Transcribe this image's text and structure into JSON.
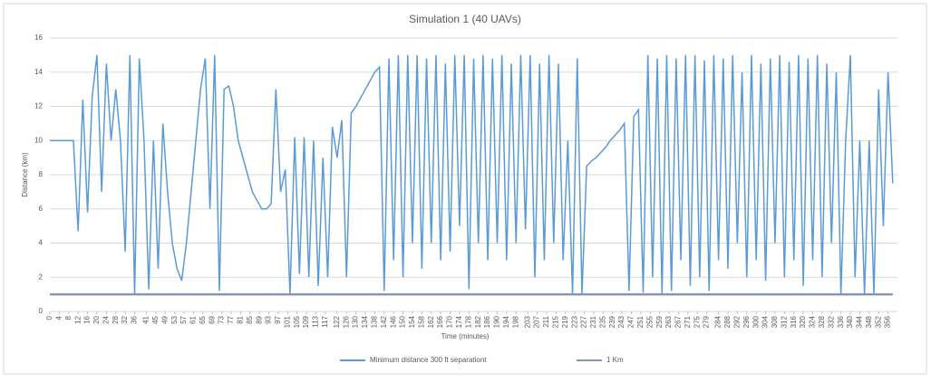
{
  "chart_data": {
    "type": "line",
    "title": "Simulation 1 (40 UAVs)",
    "x_label": "Time (minutes)",
    "y_label": "Distance (km)",
    "xlim": [
      0,
      360
    ],
    "ylim": [
      0,
      16
    ],
    "yticks": [
      0,
      2,
      4,
      6,
      8,
      10,
      12,
      14,
      16
    ],
    "xticks": [
      0,
      4,
      8,
      12,
      16,
      20,
      24,
      28,
      32,
      36,
      41,
      45,
      49,
      53,
      57,
      61,
      65,
      69,
      73,
      77,
      81,
      85,
      89,
      93,
      97,
      101,
      105,
      109,
      113,
      117,
      122,
      126,
      130,
      134,
      138,
      142,
      146,
      150,
      154,
      158,
      162,
      166,
      170,
      174,
      178,
      182,
      186,
      190,
      194,
      198,
      203,
      207,
      211,
      215,
      219,
      223,
      227,
      231,
      235,
      239,
      243,
      247,
      251,
      255,
      259,
      263,
      267,
      271,
      275,
      279,
      284,
      288,
      292,
      296,
      300,
      304,
      308,
      312,
      316,
      320,
      324,
      328,
      332,
      336,
      340,
      344,
      348,
      352,
      356
    ],
    "grid": true,
    "legend": "bottom",
    "series": [
      {
        "name": "Minimum distance 300 ft separationt",
        "color": "#5b9bd5",
        "x": [
          0,
          2,
          4,
          6,
          8,
          10,
          12,
          14,
          16,
          18,
          20,
          22,
          24,
          26,
          28,
          30,
          32,
          34,
          36,
          38,
          40,
          42,
          44,
          46,
          48,
          50,
          52,
          54,
          56,
          58,
          60,
          62,
          64,
          66,
          68,
          70,
          72,
          74,
          76,
          78,
          80,
          82,
          84,
          86,
          88,
          90,
          92,
          94,
          96,
          98,
          100,
          102,
          104,
          106,
          108,
          110,
          112,
          114,
          116,
          118,
          120,
          122,
          124,
          126,
          128,
          130,
          132,
          134,
          136,
          138,
          140,
          142,
          144,
          146,
          148,
          150,
          152,
          154,
          156,
          158,
          160,
          162,
          164,
          166,
          168,
          170,
          172,
          174,
          176,
          178,
          180,
          182,
          184,
          186,
          188,
          190,
          192,
          194,
          196,
          198,
          200,
          202,
          204,
          206,
          208,
          210,
          212,
          214,
          216,
          218,
          220,
          222,
          224,
          226,
          228,
          230,
          232,
          234,
          236,
          238,
          240,
          242,
          244,
          246,
          248,
          250,
          252,
          254,
          256,
          258,
          260,
          262,
          264,
          266,
          268,
          270,
          272,
          274,
          276,
          278,
          280,
          282,
          284,
          286,
          288,
          290,
          292,
          294,
          296,
          298,
          300,
          302,
          304,
          306,
          308,
          310,
          312,
          314,
          316,
          318,
          320,
          322,
          324,
          326,
          328,
          330,
          332,
          334,
          336,
          338,
          340,
          342,
          344,
          346,
          348,
          350,
          352,
          354,
          356,
          358
        ],
        "values": [
          10,
          10,
          10,
          10,
          10,
          10,
          4.7,
          12.4,
          5.8,
          12.6,
          15,
          7,
          14.5,
          10,
          13,
          10,
          3.5,
          15,
          1,
          14.8,
          10,
          1.3,
          10,
          2.5,
          11,
          7,
          4,
          2.5,
          1.8,
          4,
          7,
          10,
          13,
          14.8,
          6,
          15,
          1.2,
          13,
          13.2,
          12,
          10,
          9,
          8,
          7,
          6.5,
          6,
          6,
          6.3,
          13,
          7,
          8.3,
          1,
          10.2,
          2.2,
          10.2,
          2,
          10,
          1.5,
          9,
          2,
          10.8,
          9,
          11.2,
          2,
          11.6,
          12,
          12.5,
          13,
          13.5,
          14,
          14.3,
          1.2,
          14.8,
          3,
          15,
          2,
          15,
          4,
          15,
          2.5,
          14.8,
          4,
          15,
          3,
          14.5,
          3.5,
          15,
          5,
          15,
          1.3,
          14.8,
          4,
          15,
          3,
          14.8,
          4,
          15,
          3,
          14.5,
          4,
          15,
          4.8,
          15,
          2,
          14.5,
          3,
          15,
          4,
          14.5,
          3,
          10,
          1,
          14.8,
          1,
          8.5,
          8.8,
          9,
          9.3,
          9.6,
          10,
          10.3,
          10.6,
          11,
          1.2,
          11.4,
          11.8,
          1.1,
          15,
          2,
          14.8,
          1,
          15,
          1.2,
          14.8,
          3,
          15,
          1.5,
          15,
          2,
          14.7,
          1.2,
          15,
          3,
          14.8,
          2.5,
          15,
          4,
          14,
          2,
          15,
          3,
          14.5,
          1.8,
          14.8,
          4,
          15,
          2,
          14.6,
          3,
          15,
          1.5,
          14.8,
          3,
          15,
          2,
          14.5,
          4,
          14,
          1,
          10,
          15,
          2,
          10,
          1,
          10,
          1,
          13,
          5,
          14,
          7.5
        ]
      },
      {
        "name": "1 Km",
        "color": "#8497b0",
        "x": [
          0,
          358
        ],
        "values": [
          1,
          1
        ]
      }
    ]
  }
}
